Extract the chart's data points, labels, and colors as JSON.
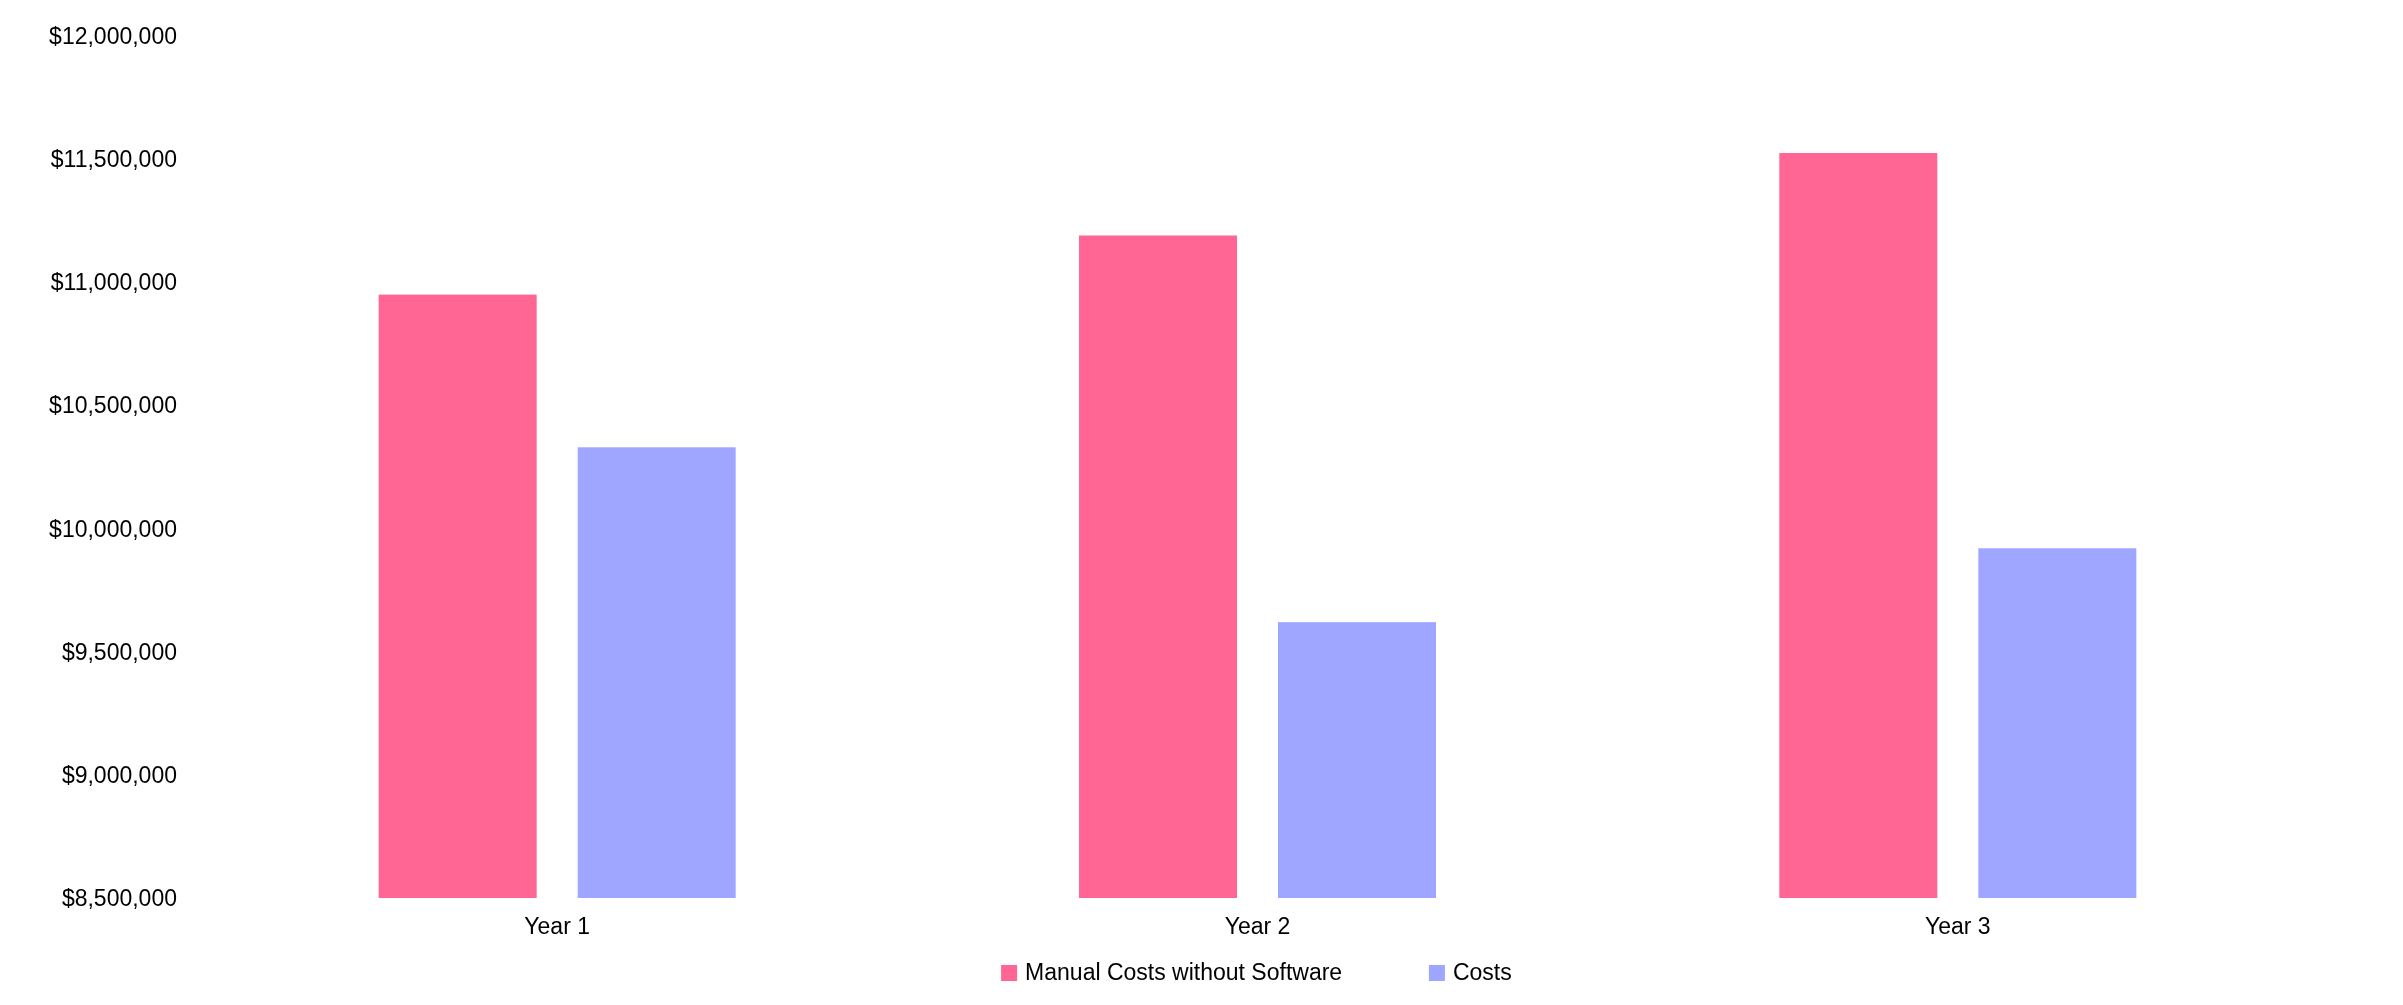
{
  "chart_data": {
    "type": "bar",
    "categories": [
      "Year 1",
      "Year 2",
      "Year 3"
    ],
    "series": [
      {
        "name": "Manual Costs without Software",
        "color": "#ff6694",
        "values": [
          10950000,
          11190000,
          11525000
        ]
      },
      {
        "name": "Costs",
        "color": "#9ea6ff",
        "values": [
          10330000,
          9620000,
          9920000
        ]
      }
    ],
    "ylim": [
      8500000,
      12000000
    ],
    "yticks": [
      {
        "value": 8500000,
        "label": "$8,500,000"
      },
      {
        "value": 9000000,
        "label": "$9,000,000"
      },
      {
        "value": 9500000,
        "label": "$9,500,000"
      },
      {
        "value": 10000000,
        "label": "$10,000,000"
      },
      {
        "value": 10500000,
        "label": "$10,500,000"
      },
      {
        "value": 11000000,
        "label": "$11,000,000"
      },
      {
        "value": 11500000,
        "label": "$11,500,000"
      },
      {
        "value": 12000000,
        "label": "$12,000,000"
      }
    ],
    "grid": false,
    "legend": "bottom"
  }
}
